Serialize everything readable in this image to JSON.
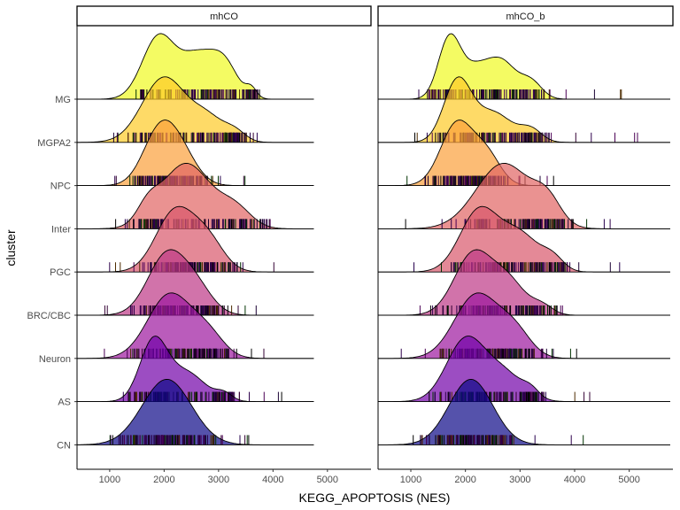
{
  "chart_data": {
    "type": "ridgeline",
    "xlabel": "KEGG_APOPTOSIS (NES)",
    "ylabel": "cluster",
    "x_ticks": [
      1000,
      2000,
      3000,
      4000,
      5000
    ],
    "x_range": [
      400,
      5800
    ],
    "panels": [
      {
        "title": "mhCO",
        "x_domain": [
          400,
          4750
        ],
        "series": [
          {
            "name": "MG",
            "color": "#f0f921",
            "peaks": [
              [
                1900,
                300,
                1.0
              ],
              [
                2600,
                300,
                0.65
              ],
              [
                3100,
                250,
                0.55
              ],
              [
                3600,
                100,
                0.15
              ]
            ],
            "rug": [
              1300,
              4000
            ]
          },
          {
            "name": "MGPA2",
            "color": "#fdca26",
            "peaks": [
              [
                2000,
                400,
                1.0
              ],
              [
                2800,
                300,
                0.35
              ],
              [
                3300,
                200,
                0.15
              ]
            ],
            "rug": [
              1000,
              3800
            ]
          },
          {
            "name": "NPC",
            "color": "#fb9f3a",
            "peaks": [
              [
                1900,
                300,
                1.0
              ],
              [
                2300,
                300,
                0.6
              ]
            ],
            "rug": [
              800,
              3500
            ]
          },
          {
            "name": "Inter",
            "color": "#e16462",
            "peaks": [
              [
                2400,
                450,
                1.0
              ],
              [
                1700,
                200,
                0.25
              ],
              [
                3300,
                300,
                0.3
              ]
            ],
            "rug": [
              1100,
              4400
            ]
          },
          {
            "name": "PGC",
            "color": "#d8576b",
            "peaks": [
              [
                2200,
                350,
                1.0
              ],
              [
                2800,
                300,
                0.5
              ]
            ],
            "rug": [
              900,
              4100
            ]
          },
          {
            "name": "BRC/CBC",
            "color": "#bd3786",
            "peaks": [
              [
                2050,
                350,
                1.0
              ],
              [
                2600,
                300,
                0.4
              ]
            ],
            "rug": [
              700,
              3700
            ]
          },
          {
            "name": "Neuron",
            "color": "#9c179e",
            "peaks": [
              [
                2100,
                400,
                1.0
              ],
              [
                2800,
                300,
                0.35
              ]
            ],
            "rug": [
              900,
              4000
            ]
          },
          {
            "name": "AS",
            "color": "#7201a8",
            "peaks": [
              [
                1800,
                250,
                1.0
              ],
              [
                2400,
                350,
                0.5
              ],
              [
                3100,
                150,
                0.12
              ]
            ],
            "rug": [
              800,
              4300
            ]
          },
          {
            "name": "CN",
            "color": "#0d0887",
            "peaks": [
              [
                2050,
                450,
                1.0
              ]
            ],
            "rug": [
              800,
              3800
            ]
          }
        ]
      },
      {
        "title": "mhCO_b",
        "x_domain": [
          400,
          5750
        ],
        "series": [
          {
            "name": "MG",
            "color": "#f0f921",
            "peaks": [
              [
                1700,
                200,
                1.0
              ],
              [
                2200,
                300,
                0.55
              ],
              [
                2700,
                250,
                0.55
              ],
              [
                3200,
                200,
                0.3
              ]
            ],
            "rug": [
              900,
              4900
            ]
          },
          {
            "name": "MGPA2",
            "color": "#fdca26",
            "peaks": [
              [
                1850,
                250,
                1.0
              ],
              [
                2500,
                350,
                0.5
              ],
              [
                3200,
                200,
                0.2
              ]
            ],
            "rug": [
              1000,
              5200
            ]
          },
          {
            "name": "NPC",
            "color": "#fb9f3a",
            "peaks": [
              [
                1850,
                300,
                1.0
              ],
              [
                2400,
                250,
                0.45
              ]
            ],
            "rug": [
              800,
              3900
            ]
          },
          {
            "name": "Inter",
            "color": "#e16462",
            "peaks": [
              [
                2700,
                500,
                1.0
              ],
              [
                3500,
                250,
                0.35
              ]
            ],
            "rug": [
              900,
              4900
            ]
          },
          {
            "name": "PGC",
            "color": "#d8576b",
            "peaks": [
              [
                2250,
                350,
                1.0
              ],
              [
                3000,
                350,
                0.6
              ],
              [
                3600,
                200,
                0.2
              ]
            ],
            "rug": [
              800,
              5200
            ]
          },
          {
            "name": "BRC/CBC",
            "color": "#bd3786",
            "peaks": [
              [
                2150,
                350,
                1.0
              ],
              [
                2800,
                300,
                0.5
              ],
              [
                3400,
                200,
                0.15
              ]
            ],
            "rug": [
              800,
              4300
            ]
          },
          {
            "name": "Neuron",
            "color": "#9c179e",
            "peaks": [
              [
                2200,
                400,
                1.0
              ],
              [
                2900,
                300,
                0.4
              ]
            ],
            "rug": [
              800,
              4100
            ]
          },
          {
            "name": "AS",
            "color": "#7201a8",
            "peaks": [
              [
                2000,
                350,
                1.0
              ],
              [
                2700,
                350,
                0.45
              ],
              [
                3200,
                150,
                0.12
              ]
            ],
            "rug": [
              800,
              4900
            ]
          },
          {
            "name": "CN",
            "color": "#0d0887",
            "peaks": [
              [
                2100,
                400,
                1.0
              ]
            ],
            "rug": [
              900,
              4200
            ]
          }
        ]
      }
    ]
  }
}
